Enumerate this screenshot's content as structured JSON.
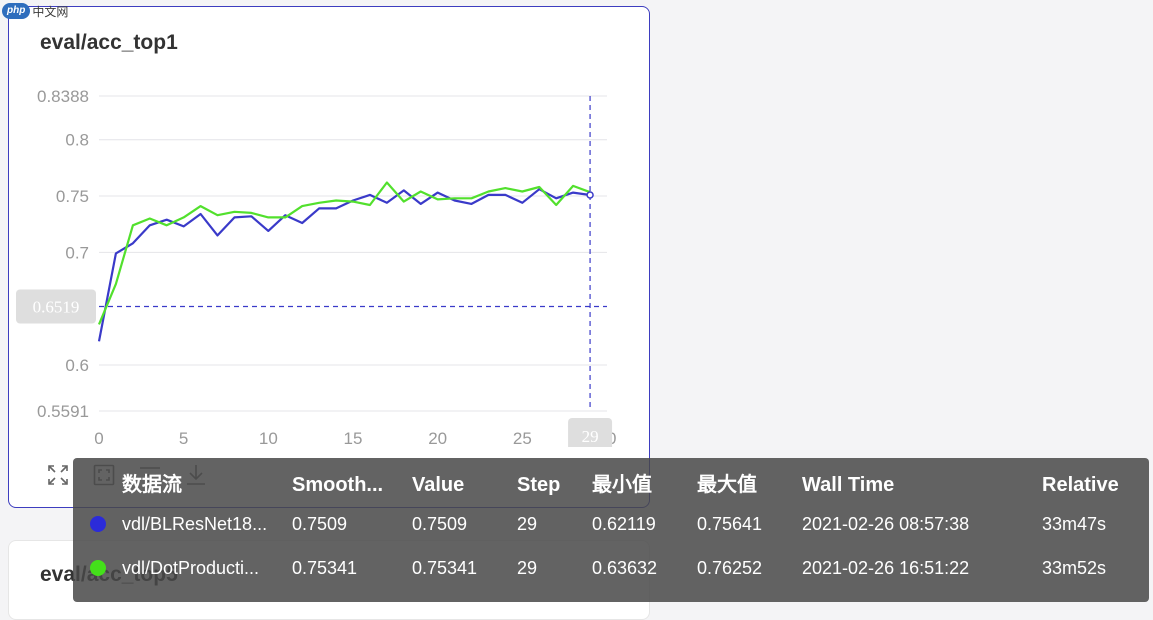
{
  "logo": {
    "badge": "php",
    "text": "中文网"
  },
  "card": {
    "title": "eval/acc_top1",
    "next_title": "eval/acc_top5"
  },
  "toolbar": [
    {
      "name": "fullscreen-icon"
    },
    {
      "name": "fit-icon"
    },
    {
      "name": "filter-icon"
    },
    {
      "name": "download-icon"
    }
  ],
  "chart_data": {
    "type": "line",
    "title": "eval/acc_top1",
    "xlim": [
      0,
      30
    ],
    "ylim": [
      0.5591,
      0.8388
    ],
    "x_ticks": [
      "0",
      "5",
      "10",
      "15",
      "20",
      "25",
      "30"
    ],
    "y_ticks": [
      "0.8388",
      "0.8",
      "0.75",
      "0.7",
      "0.6",
      "0.5591"
    ],
    "cursor": {
      "x": 29,
      "y": 0.6519,
      "x_label": "29",
      "y_label": "0.6519"
    },
    "series": [
      {
        "name": "vdl/BLResNet18...",
        "color": "#3a3ac9",
        "x": [
          0,
          1,
          2,
          3,
          4,
          5,
          6,
          7,
          8,
          9,
          10,
          11,
          12,
          13,
          14,
          15,
          16,
          17,
          18,
          19,
          20,
          21,
          22,
          23,
          24,
          25,
          26,
          27,
          28,
          29
        ],
        "y": [
          0.621,
          0.699,
          0.708,
          0.724,
          0.729,
          0.723,
          0.734,
          0.715,
          0.731,
          0.732,
          0.719,
          0.733,
          0.726,
          0.739,
          0.739,
          0.746,
          0.751,
          0.744,
          0.755,
          0.743,
          0.753,
          0.746,
          0.743,
          0.751,
          0.751,
          0.744,
          0.756,
          0.748,
          0.753,
          0.7509
        ]
      },
      {
        "name": "vdl/DotProducti...",
        "color": "#52e02d",
        "x": [
          0,
          1,
          2,
          3,
          4,
          5,
          6,
          7,
          8,
          9,
          10,
          11,
          12,
          13,
          14,
          15,
          16,
          17,
          18,
          19,
          20,
          21,
          22,
          23,
          24,
          25,
          26,
          27,
          28,
          29
        ],
        "y": [
          0.636,
          0.672,
          0.724,
          0.73,
          0.724,
          0.731,
          0.741,
          0.733,
          0.736,
          0.735,
          0.731,
          0.731,
          0.741,
          0.744,
          0.746,
          0.745,
          0.742,
          0.762,
          0.745,
          0.754,
          0.747,
          0.748,
          0.748,
          0.754,
          0.757,
          0.754,
          0.758,
          0.742,
          0.759,
          0.7534
        ]
      }
    ]
  },
  "tooltip": {
    "headers": [
      "数据流",
      "Smooth...",
      "Value",
      "Step",
      "最小值",
      "最大值",
      "Wall Time",
      "Relative"
    ],
    "rows": [
      {
        "color": "#2b2bd9",
        "cells": [
          "vdl/BLResNet18...",
          "0.7509",
          "0.7509",
          "29",
          "0.62119",
          "0.75641",
          "2021-02-26 08:57:38",
          "33m47s"
        ]
      },
      {
        "color": "#44e01a",
        "cells": [
          "vdl/DotProducti...",
          "0.75341",
          "0.75341",
          "29",
          "0.63632",
          "0.76252",
          "2021-02-26 16:51:22",
          "33m52s"
        ]
      }
    ]
  }
}
